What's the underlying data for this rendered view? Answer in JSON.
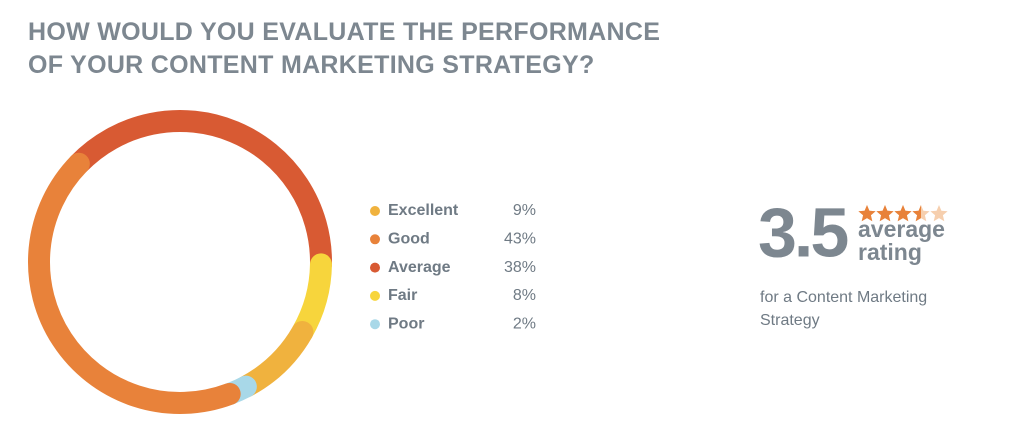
{
  "chart_data": {
    "type": "pie",
    "title": "HOW WOULD YOU EVALUATE THE PERFORMANCE OF YOUR CONTENT MARKETING STRATEGY?",
    "categories": [
      "Excellent",
      "Good",
      "Average",
      "Fair",
      "Poor"
    ],
    "values": [
      9,
      43,
      38,
      8,
      2
    ],
    "value_labels": [
      "9%",
      "43%",
      "38%",
      "8%",
      "2%"
    ],
    "colors": [
      "#f0b23e",
      "#e8823a",
      "#d85a33",
      "#f7d53c",
      "#a8d8e8"
    ]
  },
  "rating": {
    "value": 3.5,
    "scale": 5,
    "label": "average rating",
    "caption": "for a Content Marketing Strategy"
  }
}
